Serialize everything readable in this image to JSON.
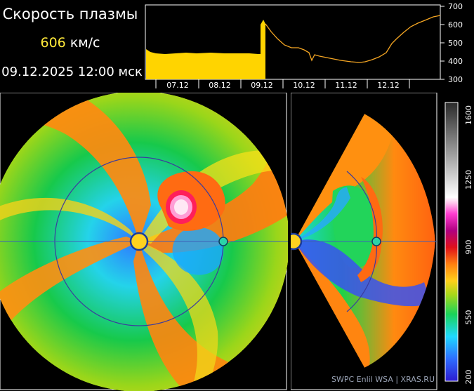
{
  "header": {
    "title": "Скорость плазмы",
    "speed_value": "606",
    "speed_unit": "км/с",
    "datetime": "09.12.2025 12:00 мск"
  },
  "timeseries": {
    "x_tick_labels": [
      "07.12",
      "08.12",
      "09.12",
      "10.12",
      "11.12",
      "12.12"
    ],
    "y_tick_labels": [
      "700",
      "600",
      "500",
      "400",
      "300"
    ],
    "ylim": [
      300,
      700
    ],
    "observed_fill_color": "#ffd400",
    "forecast_line_color": "#f5a623"
  },
  "colorbar": {
    "tick_labels": [
      "1600",
      "1250",
      "900",
      "550",
      "200"
    ]
  },
  "markers": {
    "sun_color": "#ffd21f",
    "earth_color": "#2bd3a8"
  },
  "credit": "SWPC Enlil WSA  |  XRAS.RU"
}
